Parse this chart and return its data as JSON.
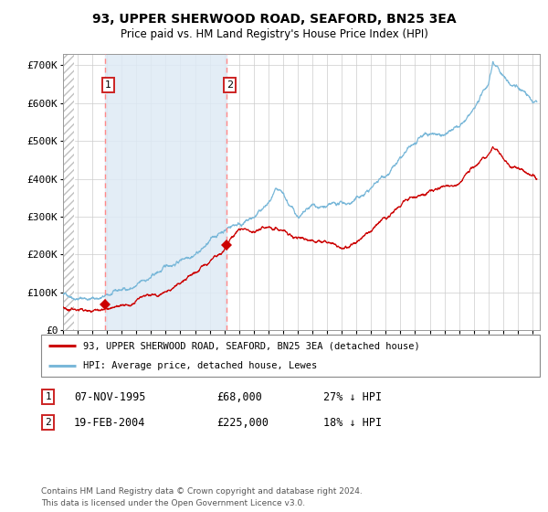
{
  "title": "93, UPPER SHERWOOD ROAD, SEAFORD, BN25 3EA",
  "subtitle": "Price paid vs. HM Land Registry's House Price Index (HPI)",
  "ylim": [
    0,
    730000
  ],
  "yticks": [
    0,
    100000,
    200000,
    300000,
    400000,
    500000,
    600000,
    700000
  ],
  "ytick_labels": [
    "£0",
    "£100K",
    "£200K",
    "£300K",
    "£400K",
    "£500K",
    "£600K",
    "£700K"
  ],
  "sale1_date_num": 1995.85,
  "sale1_price": 68000,
  "sale1_label": "07-NOV-1995",
  "sale1_price_str": "£68,000",
  "sale1_hpi": "27% ↓ HPI",
  "sale2_date_num": 2004.13,
  "sale2_price": 225000,
  "sale2_label": "19-FEB-2004",
  "sale2_price_str": "£225,000",
  "sale2_hpi": "18% ↓ HPI",
  "hpi_line_color": "#7ab8d9",
  "price_line_color": "#cc0000",
  "sale_marker_color": "#cc0000",
  "vline_color": "#ff8888",
  "bg_shade_color": "#deeaf5",
  "legend1_text": "93, UPPER SHERWOOD ROAD, SEAFORD, BN25 3EA (detached house)",
  "legend2_text": "HPI: Average price, detached house, Lewes",
  "footer": "Contains HM Land Registry data © Crown copyright and database right 2024.\nThis data is licensed under the Open Government Licence v3.0.",
  "xmin": 1993.0,
  "xmax": 2025.5
}
